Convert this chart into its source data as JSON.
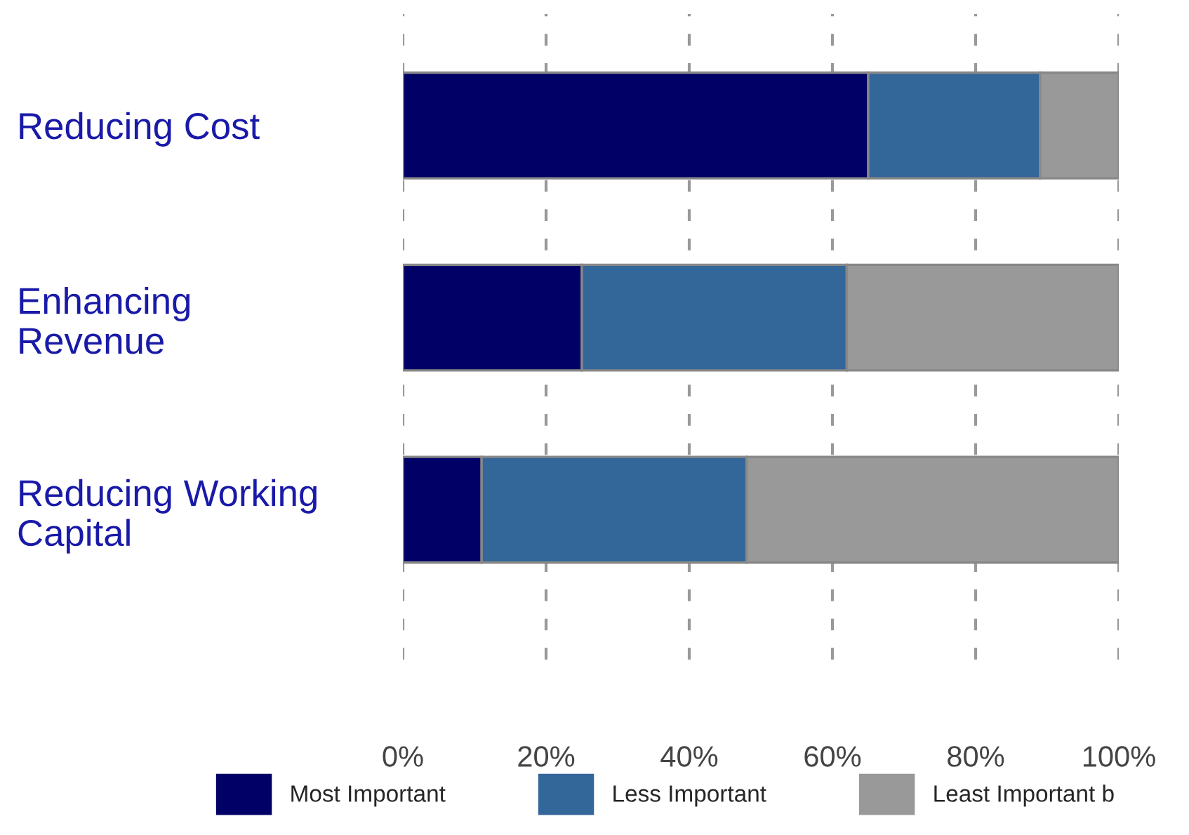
{
  "chart_data": {
    "type": "bar",
    "orientation": "horizontal",
    "stacked": true,
    "categories": [
      "Reducing Cost",
      "Enhancing\nRevenue",
      "Reducing Working\nCapital"
    ],
    "series": [
      {
        "name": "Most Important",
        "color": "#000066",
        "values": [
          65,
          25,
          11
        ]
      },
      {
        "name": "Less Important",
        "color": "#336699",
        "values": [
          24,
          37,
          37
        ]
      },
      {
        "name": "Least Important b",
        "color": "#999999",
        "values": [
          11,
          38,
          52
        ]
      }
    ],
    "xlim": [
      0,
      100
    ],
    "xticks": [
      {
        "value": 0,
        "label": "0%"
      },
      {
        "value": 20,
        "label": "20%"
      },
      {
        "value": 40,
        "label": "40%"
      },
      {
        "value": 60,
        "label": "60%"
      },
      {
        "value": 80,
        "label": "80%"
      },
      {
        "value": 100,
        "label": "100%"
      }
    ],
    "grid": "x",
    "legend": "bottom"
  }
}
